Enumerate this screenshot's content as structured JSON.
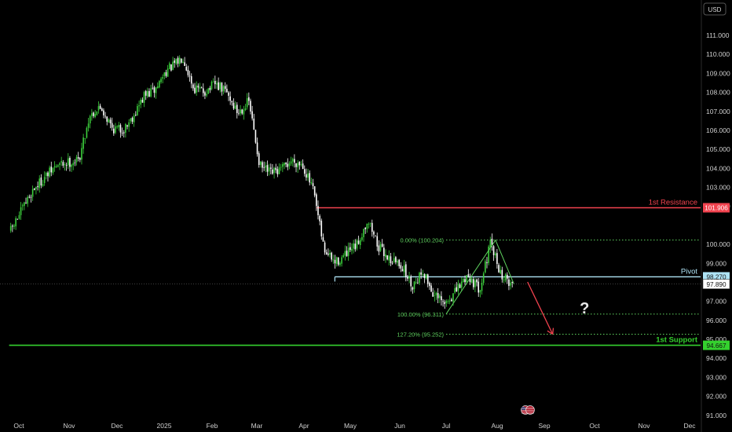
{
  "currency": "USD",
  "flag_icon": "us-flag-icon",
  "colors": {
    "background": "#000000",
    "candle_up": "#3ccf3c",
    "candle_down": "#ffffff",
    "resistance": "#f2434f",
    "support": "#34d12e",
    "pivot": "#aee3f5",
    "fib": "#5fd25f",
    "arrow": "#f2434f",
    "text": "#d0d0d0"
  },
  "chart_data": {
    "type": "candlestick",
    "ylim": [
      91.0,
      111.6
    ],
    "y_ticks": [
      "111.000",
      "110.000",
      "109.000",
      "108.000",
      "107.000",
      "106.000",
      "105.000",
      "104.000",
      "103.000",
      "102.000",
      "100.000",
      "99.000",
      "97.000",
      "96.000",
      "95.000",
      "94.000",
      "93.000",
      "92.000",
      "91.000"
    ],
    "x_ticks": [
      "Oct",
      "Nov",
      "Dec",
      "2025",
      "Feb",
      "Mar",
      "Apr",
      "May",
      "Jun",
      "Jul",
      "Aug",
      "Sep",
      "Oct",
      "Nov",
      "Dec"
    ],
    "close_path": [
      [
        "2024-09-26",
        100.7
      ],
      [
        "2024-10-03",
        101.8
      ],
      [
        "2024-10-10",
        102.9
      ],
      [
        "2024-10-17",
        103.5
      ],
      [
        "2024-10-24",
        104.1
      ],
      [
        "2024-10-31",
        104.3
      ],
      [
        "2024-11-07",
        104.4
      ],
      [
        "2024-11-14",
        106.8
      ],
      [
        "2024-11-21",
        107.2
      ],
      [
        "2024-11-28",
        106.1
      ],
      [
        "2024-12-05",
        106.0
      ],
      [
        "2024-12-12",
        106.8
      ],
      [
        "2024-12-19",
        107.8
      ],
      [
        "2024-12-26",
        108.1
      ],
      [
        "2025-01-02",
        109.1
      ],
      [
        "2025-01-09",
        109.5
      ],
      [
        "2025-01-13",
        109.9
      ],
      [
        "2025-01-20",
        108.2
      ],
      [
        "2025-01-27",
        108.0
      ],
      [
        "2025-02-03",
        108.4
      ],
      [
        "2025-02-10",
        108.0
      ],
      [
        "2025-02-17",
        106.9
      ],
      [
        "2025-02-24",
        107.5
      ],
      [
        "2025-03-03",
        104.1
      ],
      [
        "2025-03-10",
        103.7
      ],
      [
        "2025-03-17",
        103.9
      ],
      [
        "2025-03-24",
        104.4
      ],
      [
        "2025-03-31",
        104.2
      ],
      [
        "2025-04-07",
        102.8
      ],
      [
        "2025-04-14",
        99.7
      ],
      [
        "2025-04-21",
        99.0
      ],
      [
        "2025-04-28",
        99.4
      ],
      [
        "2025-05-05",
        99.9
      ],
      [
        "2025-05-12",
        101.3
      ],
      [
        "2025-05-19",
        99.8
      ],
      [
        "2025-05-26",
        99.2
      ],
      [
        "2025-06-02",
        98.9
      ],
      [
        "2025-06-09",
        97.8
      ],
      [
        "2025-06-16",
        98.6
      ],
      [
        "2025-06-23",
        97.3
      ],
      [
        "2025-06-30",
        96.8
      ],
      [
        "2025-07-07",
        97.5
      ],
      [
        "2025-07-14",
        98.4
      ],
      [
        "2025-07-21",
        97.6
      ],
      [
        "2025-07-28",
        100.0
      ],
      [
        "2025-08-04",
        98.3
      ],
      [
        "2025-08-11",
        97.9
      ]
    ],
    "levels": [
      {
        "id": "resistance",
        "label": "1st Resistance",
        "value": "101.906",
        "y": 101.906,
        "start": "2025-04-09"
      },
      {
        "id": "pivot",
        "label": "Pivot",
        "value": "98.270",
        "y": 98.27,
        "start": "2025-04-21"
      },
      {
        "id": "support",
        "label": "1st Support",
        "value": "94.667",
        "y": 94.667,
        "start": "2024-09-25"
      }
    ],
    "current_price": {
      "value": "97.890",
      "y": 97.89
    },
    "fib_levels": [
      {
        "label": "0.00% (100.204)",
        "y": 100.204
      },
      {
        "label": "100.00% (96.311)",
        "y": 96.311
      },
      {
        "label": "127.20% (95.252)",
        "y": 95.252
      }
    ],
    "fib_start": "2025-07-01",
    "fib_end": "2025-10-15",
    "fib_swing": [
      [
        "2025-07-01",
        96.311
      ],
      [
        "2025-07-31",
        100.204
      ],
      [
        "2025-08-12",
        97.9
      ]
    ],
    "forecast_arrow": {
      "from": [
        "2025-08-21",
        98.0
      ],
      "to": [
        "2025-09-06",
        95.25
      ]
    },
    "question_mark": {
      "text": "?",
      "at": [
        "2025-09-25",
        96.6
      ]
    }
  }
}
